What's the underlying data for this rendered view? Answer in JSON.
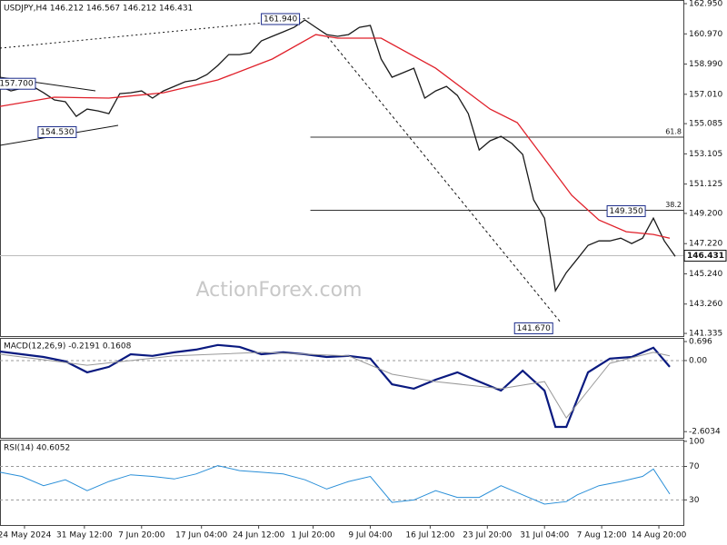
{
  "chart_data": [
    {
      "type": "line",
      "title": "USDJPY,H4  146.212 146.567 146.212 146.431",
      "watermark": "ActionForex.com",
      "xlim": [
        0,
        251
      ],
      "ylim": [
        141.16,
        163.19
      ],
      "yticks": [
        {
          "value": 162.95,
          "label": "162.950"
        },
        {
          "value": 160.97,
          "label": "160.970"
        },
        {
          "value": 158.99,
          "label": "158.990"
        },
        {
          "value": 157.01,
          "label": "157.010"
        },
        155.085,
        153.105,
        151.125,
        {
          "value": 149.2,
          "label": "149.200"
        },
        {
          "value": 147.22,
          "label": "147.220"
        },
        {
          "value": 145.24,
          "label": "145.240"
        },
        {
          "value": 143.26,
          "label": "143.260"
        },
        141.335
      ],
      "series": [
        {
          "color": "#1a1a1a",
          "x": [
            0,
            4,
            8,
            12,
            16,
            20,
            24,
            28,
            32,
            36,
            40,
            44,
            48,
            52,
            56,
            60,
            64,
            68,
            72,
            76,
            80,
            84,
            88,
            92,
            96,
            100,
            104,
            108,
            112,
            116,
            120,
            124,
            128,
            132,
            136,
            140,
            144,
            148,
            152,
            156,
            160,
            164,
            168,
            172,
            176,
            180,
            184,
            188,
            192,
            196,
            200,
            204,
            208,
            212,
            216,
            220,
            224,
            228,
            232,
            236,
            240,
            244,
            248
          ],
          "values": [
            157.53,
            157.23,
            157.41,
            157.53,
            157.11,
            156.64,
            156.52,
            155.56,
            156.04,
            155.92,
            155.74,
            157.05,
            157.11,
            157.23,
            156.76,
            157.23,
            157.53,
            157.83,
            157.95,
            158.3,
            158.9,
            159.61,
            159.61,
            159.73,
            160.51,
            160.81,
            161.1,
            161.4,
            161.88,
            161.4,
            160.92,
            160.81,
            160.92,
            161.4,
            161.52,
            159.32,
            158.13,
            158.42,
            158.72,
            156.76,
            157.23,
            157.53,
            156.93,
            155.74,
            153.36,
            153.96,
            154.25,
            153.78,
            153.06,
            150.09,
            148.89,
            144.13,
            145.32,
            146.21,
            147.11,
            147.4,
            147.4,
            147.58,
            147.23,
            147.58,
            148.89,
            147.4,
            146.39
          ]
        },
        {
          "color": "#e0202a",
          "x": [
            0,
            20,
            40,
            60,
            80,
            100,
            116,
            124,
            140,
            160,
            180,
            190,
            200,
            210,
            220,
            230,
            240,
            246
          ],
          "values": [
            156.22,
            156.82,
            156.76,
            157.11,
            157.95,
            159.32,
            160.92,
            160.69,
            160.69,
            158.72,
            156.04,
            155.15,
            152.77,
            150.38,
            148.77,
            148.0,
            147.82,
            147.58
          ]
        }
      ],
      "last": 146.431,
      "annotations": [
        {
          "x": 103,
          "value": 161.94,
          "label": "161.940"
        },
        {
          "x": 6,
          "value": 157.7,
          "label": "157.700"
        },
        {
          "x": 21,
          "value": 154.53,
          "label": "154.530"
        },
        {
          "x": 230,
          "value": 149.35,
          "label": "149.350"
        },
        {
          "x": 196,
          "value": 141.67,
          "label": "141.670"
        }
      ],
      "fib_start_x": 114,
      "fibs": [
        {
          "ratio": 61.8,
          "price": 154.2
        },
        {
          "ratio": 38.2,
          "price": 149.41
        }
      ]
    },
    {
      "type": "line",
      "title": "MACD(12,26,9) -0.2191 0.1608",
      "xlim": [
        0,
        251
      ],
      "ylim": [
        -2.83,
        0.83
      ],
      "yticks": [
        0.696,
        {
          "value": 0,
          "label": "0.00"
        },
        -2.6034
      ],
      "reference_lines": [
        0
      ],
      "series": [
        {
          "color": "#0a1a80",
          "width": 2.2,
          "x": [
            0,
            8,
            16,
            24,
            32,
            40,
            48,
            56,
            64,
            72,
            80,
            88,
            96,
            104,
            112,
            120,
            128,
            136,
            144,
            152,
            160,
            168,
            176,
            184,
            192,
            200,
            204,
            208,
            216,
            224,
            232,
            240,
            246
          ],
          "values": [
            0.33,
            0.23,
            0.13,
            -0.03,
            -0.43,
            -0.23,
            0.23,
            0.17,
            0.3,
            0.4,
            0.57,
            0.5,
            0.23,
            0.3,
            0.23,
            0.13,
            0.17,
            0.07,
            -0.87,
            -1.03,
            -0.7,
            -0.43,
            -0.77,
            -1.1,
            -0.37,
            -1.1,
            -2.43,
            -2.43,
            -0.43,
            0.07,
            0.13,
            0.47,
            -0.23
          ]
        },
        {
          "color": "#999999",
          "width": 1,
          "x": [
            0,
            32,
            64,
            96,
            128,
            144,
            160,
            184,
            200,
            208,
            216,
            224,
            240,
            246
          ],
          "values": [
            0.23,
            -0.17,
            0.17,
            0.3,
            0.17,
            -0.5,
            -0.77,
            -1.03,
            -0.77,
            -2.1,
            -1.1,
            -0.1,
            0.3,
            0.17
          ]
        }
      ]
    },
    {
      "type": "line",
      "title": "RSI(14) 40.6052",
      "xlim": [
        0,
        251
      ],
      "ylim": [
        0,
        102
      ],
      "yticks": [
        100,
        70,
        30
      ],
      "reference_lines": [
        70,
        30
      ],
      "xticks": [
        {
          "value": 9,
          "label": "24 May 2024"
        },
        {
          "value": 31,
          "label": "31 May 12:00"
        },
        {
          "value": 52,
          "label": "7 Jun 20:00"
        },
        {
          "value": 74,
          "label": "17 Jun 04:00"
        },
        {
          "value": 95,
          "label": "24 Jun 12:00"
        },
        {
          "value": 115,
          "label": "1 Jul 20:00"
        },
        {
          "value": 136,
          "label": "9 Jul 04:00"
        },
        {
          "value": 158,
          "label": "16 Jul 12:00"
        },
        {
          "value": 179,
          "label": "23 Jul 20:00"
        },
        {
          "value": 200,
          "label": "31 Jul 04:00"
        },
        {
          "value": 221,
          "label": "7 Aug 12:00"
        },
        {
          "value": 242,
          "label": "14 Aug 20:00"
        }
      ],
      "series": [
        {
          "color": "#2a8fd8",
          "width": 1,
          "x": [
            0,
            8,
            16,
            24,
            32,
            40,
            48,
            56,
            64,
            72,
            80,
            88,
            96,
            104,
            112,
            120,
            128,
            136,
            144,
            152,
            160,
            168,
            176,
            184,
            192,
            200,
            208,
            212,
            220,
            228,
            236,
            240,
            246
          ],
          "values": [
            63,
            58,
            47,
            54,
            41,
            52,
            60,
            58,
            55,
            61,
            71,
            65,
            63,
            61,
            54,
            43,
            52,
            58,
            27,
            30,
            41,
            33,
            33,
            47,
            36,
            25,
            28,
            36,
            47,
            52,
            58,
            67,
            37
          ]
        }
      ]
    }
  ]
}
